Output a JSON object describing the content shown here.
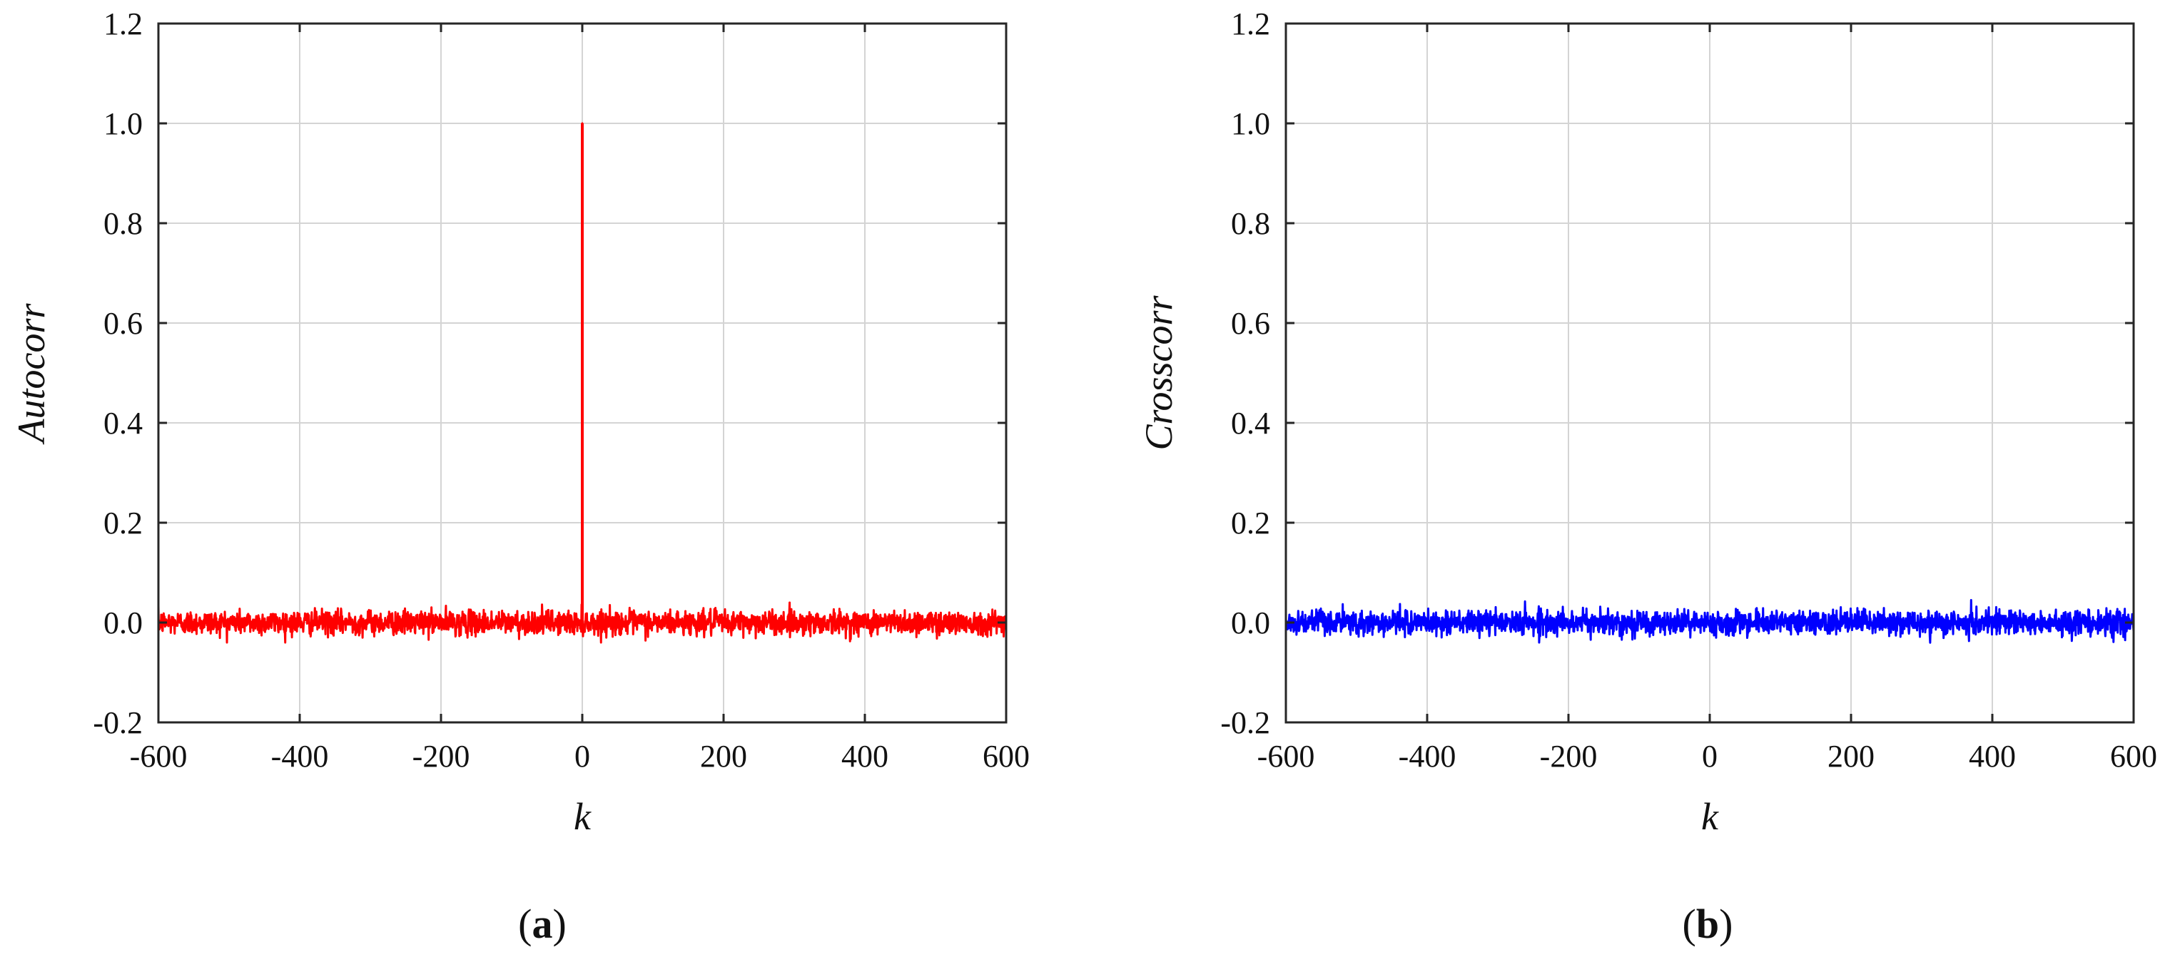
{
  "chart_data": [
    {
      "type": "line",
      "panel": "a",
      "panel_label_open": "(",
      "panel_label_letter": "a",
      "panel_label_close": ")",
      "xlabel": "k",
      "ylabel": "Autocorr",
      "xlim": [
        -600,
        600
      ],
      "ylim": [
        -0.2,
        1.2
      ],
      "xticks": [
        -600,
        -400,
        -200,
        0,
        200,
        400,
        600
      ],
      "yticks": [
        -0.2,
        0.0,
        0.2,
        0.4,
        0.6,
        0.8,
        1.0,
        1.2
      ],
      "xtick_labels": [
        "-600",
        "-400",
        "-200",
        "0",
        "200",
        "400",
        "600"
      ],
      "ytick_labels": [
        "-0.2",
        "0.0",
        "0.2",
        "0.4",
        "0.6",
        "0.8",
        "1.0",
        "1.2"
      ],
      "grid": true,
      "color": "#ff0000",
      "series": [
        {
          "description_kind": "noise",
          "noise_level": 0.012,
          "noise_extreme": 0.04,
          "peak": {
            "x": 0,
            "y": 1.0
          }
        }
      ]
    },
    {
      "type": "line",
      "panel": "b",
      "panel_label_open": "(",
      "panel_label_letter": "b",
      "panel_label_close": ")",
      "xlabel": "k",
      "ylabel": "Crosscorr",
      "xlim": [
        -600,
        600
      ],
      "ylim": [
        -0.2,
        1.2
      ],
      "xticks": [
        -600,
        -400,
        -200,
        0,
        200,
        400,
        600
      ],
      "yticks": [
        -0.2,
        0.0,
        0.2,
        0.4,
        0.6,
        0.8,
        1.0,
        1.2
      ],
      "xtick_labels": [
        "-600",
        "-400",
        "-200",
        "0",
        "200",
        "400",
        "600"
      ],
      "ytick_labels": [
        "-0.2",
        "0.0",
        "0.2",
        "0.4",
        "0.6",
        "0.8",
        "1.0",
        "1.2"
      ],
      "grid": true,
      "color": "#0000ff",
      "series": [
        {
          "description_kind": "noise",
          "noise_level": 0.012,
          "noise_extreme": 0.045
        }
      ]
    }
  ]
}
